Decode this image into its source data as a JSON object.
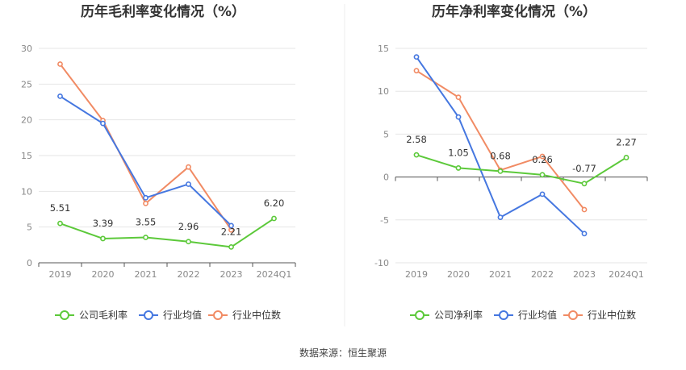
{
  "source": "数据来源：恒生聚源",
  "colors": {
    "company": "#5cc93a",
    "avg": "#4577e0",
    "median": "#f18b64",
    "grid": "#e6e6e6",
    "axis": "#555555"
  },
  "chart_data": [
    {
      "type": "line",
      "title": "历年毛利率变化情况（%）",
      "categories": [
        "2019",
        "2020",
        "2021",
        "2022",
        "2023",
        "2024Q1"
      ],
      "ylim": [
        0,
        30
      ],
      "yticks": [
        0,
        5,
        10,
        15,
        20,
        25,
        30
      ],
      "series": [
        {
          "name": "公司毛利率",
          "values": [
            5.51,
            3.39,
            3.55,
            2.96,
            2.21,
            6.2
          ],
          "labels": [
            "5.51",
            "3.39",
            "3.55",
            "2.96",
            "2.21",
            "6.20"
          ]
        },
        {
          "name": "行业均值",
          "values": [
            23.3,
            19.5,
            9.1,
            11.0,
            5.2,
            null
          ]
        },
        {
          "name": "行业中位数",
          "values": [
            27.8,
            19.9,
            8.3,
            13.4,
            4.6,
            null
          ]
        }
      ],
      "legend": "bottom"
    },
    {
      "type": "line",
      "title": "历年净利率变化情况（%）",
      "categories": [
        "2019",
        "2020",
        "2021",
        "2022",
        "2023",
        "2024Q1"
      ],
      "ylim": [
        -10,
        15
      ],
      "yticks": [
        -10,
        -5,
        0,
        5,
        10,
        15
      ],
      "series": [
        {
          "name": "公司净利率",
          "values": [
            2.58,
            1.05,
            0.68,
            0.26,
            -0.77,
            2.27
          ],
          "labels": [
            "2.58",
            "1.05",
            "0.68",
            "0.26",
            "-0.77",
            "2.27"
          ]
        },
        {
          "name": "行业均值",
          "values": [
            14.0,
            7.0,
            -4.7,
            -2.0,
            -6.6,
            null
          ]
        },
        {
          "name": "行业中位数",
          "values": [
            12.4,
            9.3,
            0.8,
            2.4,
            -3.8,
            null
          ]
        }
      ],
      "legend": "bottom"
    }
  ]
}
